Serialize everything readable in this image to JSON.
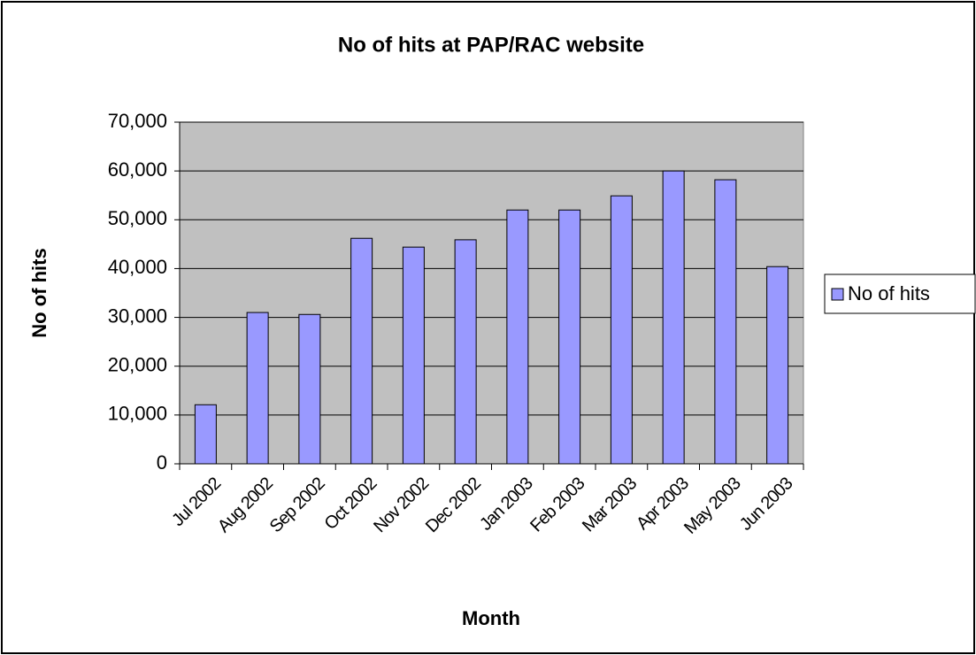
{
  "chart_data": {
    "type": "bar",
    "title": "No of hits at PAP/RAC website",
    "x_label": "Month",
    "y_label": "No of hits",
    "categories": [
      "Jul 2002",
      "Aug 2002",
      "Sep 2002",
      "Oct 2002",
      "Nov 2002",
      "Dec 2002",
      "Jan 2003",
      "Feb 2003",
      "Mar 2003",
      "Apr 2003",
      "May 2003",
      "Jun 2003"
    ],
    "series": [
      {
        "name": "No of hits",
        "color": "#9999ff",
        "values": [
          12100,
          31000,
          30600,
          46200,
          44400,
          45900,
          52000,
          52000,
          54900,
          60000,
          58200,
          40400
        ]
      }
    ],
    "ylim": [
      0,
      70000
    ],
    "yticks": [
      0,
      {
        "value": 10000,
        "label": "10,000"
      },
      {
        "value": 20000,
        "label": "20,000"
      },
      {
        "value": 30000,
        "label": "30,000"
      },
      {
        "value": 40000,
        "label": "40,000"
      },
      {
        "value": 50000,
        "label": "50,000"
      },
      {
        "value": 60000,
        "label": "60,000"
      },
      {
        "value": 70000,
        "label": "70,000"
      }
    ],
    "grid": true,
    "legend": "right"
  }
}
